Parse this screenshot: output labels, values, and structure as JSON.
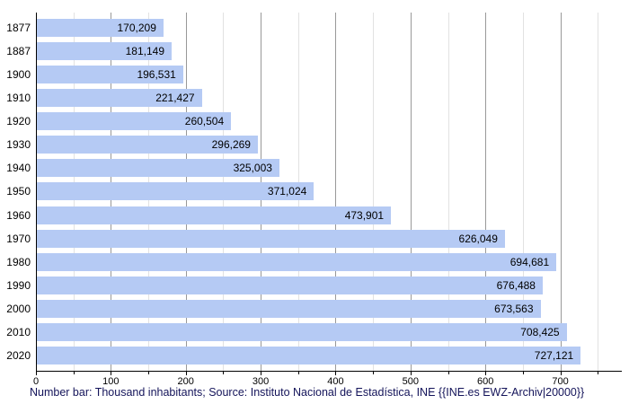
{
  "chart_data": {
    "type": "bar",
    "orientation": "horizontal",
    "title": "",
    "caption": "Number bar: Thousand inhabitants; Source: Instituto Nacional de Estadística, INE {{INE.es EWZ-Archiv|20000}}",
    "categories": [
      "1877",
      "1887",
      "1900",
      "1910",
      "1920",
      "1930",
      "1940",
      "1950",
      "1960",
      "1970",
      "1980",
      "1990",
      "2000",
      "2010",
      "2020"
    ],
    "values": [
      170209,
      181149,
      196531,
      221427,
      260504,
      296269,
      325003,
      371024,
      473901,
      626049,
      694681,
      676488,
      673563,
      708425,
      727121
    ],
    "value_labels": [
      "170,209",
      "181,149",
      "196,531",
      "221,427",
      "260,504",
      "296,269",
      "325,003",
      "371,024",
      "473,901",
      "626,049",
      "694,681",
      "676,488",
      "673,563",
      "708,425",
      "727,121"
    ],
    "value_unit": "thousand inhabitants",
    "xlim": [
      0,
      780
    ],
    "x_tick_interval": 100,
    "x_minor_interval": 50,
    "x_tick_labels": [
      "0",
      "100",
      "200",
      "300",
      "400",
      "500",
      "600",
      "700"
    ],
    "grid": true,
    "legend": "none",
    "colors": {
      "bar": "#b5caf4",
      "major_grid": "#999999",
      "minor_grid": "#e2e2e2",
      "axis": "#000000",
      "label_text": "#000000",
      "caption_text": "#14145a",
      "background": "#ffffff"
    }
  }
}
